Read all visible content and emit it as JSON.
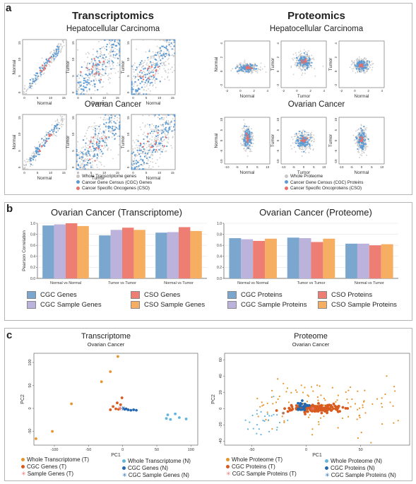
{
  "panel_a": {
    "label": "a",
    "left_title": "Transcriptomics",
    "right_title": "Proteomics",
    "rows": [
      "Hepatocellular Carcinoma",
      "Ovarian Cancer"
    ],
    "left_legend": [
      "Whole Transcriptome genes",
      "Cancer Gene Census (CGC) Genes",
      "Cancer Specific Oncogenes (CSO)"
    ],
    "right_legend": [
      "Whole Proteome",
      "Cancer Gene Census (CGC) Proteins",
      "Cancer Specific Oncoproteins (CSO)"
    ]
  },
  "panel_b": {
    "label": "b"
  },
  "panel_c": {
    "label": "c"
  },
  "colors": {
    "grey": "#c6c6c6",
    "blue": "#5b9bd5",
    "red": "#e8706a",
    "bar_blue": "#7ba7cf",
    "bar_lav": "#bbb3dc",
    "bar_red": "#ee7d73",
    "bar_orange": "#f6ae62",
    "orange": "#e8942c",
    "darkorange": "#d95a1e",
    "darkblue": "#2368b0",
    "lightblue": "#64b4dc"
  },
  "chart_data": [
    {
      "type": "scatter",
      "panel": "a-transcriptomics",
      "note_axes": [
        [
          "Normal",
          "Normal"
        ],
        [
          "Tumor",
          "Tumor"
        ],
        [
          "Normal",
          "Tumor"
        ]
      ],
      "xticks": [
        "0",
        "5",
        "10",
        "15"
      ],
      "yticks": [
        "0",
        "5",
        "10",
        "15"
      ],
      "xlim": [
        0,
        15
      ],
      "ylim": [
        0,
        15
      ]
    },
    {
      "type": "scatter",
      "panel": "a-proteomics",
      "hcc_xticks": [
        "-2",
        "0",
        "2",
        "4"
      ],
      "hcc_yticks": [
        "-2",
        "0",
        "2",
        "4"
      ],
      "ov_xticks": [
        "-10",
        "-5",
        "0",
        "5",
        "10"
      ],
      "ov_yticks": [
        "-10",
        "-5",
        "0",
        "5",
        "10"
      ]
    },
    {
      "type": "bar",
      "title": "Ovarian Cancer (Transcriptome)",
      "ylabel": "Pearson Correlation",
      "ylim": [
        0,
        1
      ],
      "yticks": [
        "0.0",
        "0.2",
        "0.4",
        "0.6",
        "0.8",
        "1.0"
      ],
      "categories": [
        "Normal vs Normal",
        "Tumor vs Tumor",
        "Normal vs Tumor"
      ],
      "series": [
        {
          "name": "CGC Genes",
          "values": [
            0.96,
            0.78,
            0.83
          ]
        },
        {
          "name": "CGC Sample Genes",
          "values": [
            0.98,
            0.88,
            0.84
          ]
        },
        {
          "name": "CSO Genes",
          "values": [
            1.0,
            0.92,
            0.93
          ]
        },
        {
          "name": "CSO Sample Genes",
          "values": [
            0.95,
            0.88,
            0.86
          ]
        }
      ]
    },
    {
      "type": "bar",
      "title": "Ovarian Cancer (Proteome)",
      "ylabel": "",
      "ylim": [
        0,
        1
      ],
      "yticks": [
        "0.0",
        "0.2",
        "0.4",
        "0.6",
        "0.8",
        "1.0"
      ],
      "categories": [
        "Normal vs Normal",
        "Tumor vs Tumor",
        "Normal vs Tumor"
      ],
      "series": [
        {
          "name": "CGC Proteins",
          "values": [
            0.73,
            0.74,
            0.63
          ]
        },
        {
          "name": "CGC Sample Proteins",
          "values": [
            0.71,
            0.73,
            0.63
          ]
        },
        {
          "name": "CSO Proteins",
          "values": [
            0.68,
            0.66,
            0.6
          ]
        },
        {
          "name": "CSO Sample Proteins",
          "values": [
            0.72,
            0.72,
            0.62
          ]
        }
      ]
    },
    {
      "type": "scatter",
      "title": "Transcriptome",
      "subtitle": "Ovarian Cancer",
      "xlabel": "PC1",
      "ylabel": "PC2",
      "xlim": [
        -130,
        110
      ],
      "ylim": [
        -80,
        120
      ],
      "xticks": [
        -100,
        -50,
        0,
        50,
        100
      ],
      "yticks": [
        -50,
        0,
        50,
        100
      ],
      "series": [
        {
          "name": "Whole Transcriptome (T)",
          "points": [
            [
              -127,
              -66
            ],
            [
              -103,
              -50
            ],
            [
              -75,
              10
            ],
            [
              -31,
              58
            ],
            [
              -18,
              80
            ],
            [
              -7,
              113
            ]
          ]
        },
        {
          "name": "CGC Genes (T)",
          "points": [
            [
              -18,
              -3
            ],
            [
              -14,
              4
            ],
            [
              -10,
              -1
            ],
            [
              -8,
              12
            ],
            [
              -3,
              8
            ],
            [
              -1,
              23
            ],
            [
              -6,
              -2
            ]
          ]
        },
        {
          "name": "Sample Genes (T)",
          "points": [
            [
              -4,
              0
            ]
          ]
        },
        {
          "name": "Whole Transcriptome (N)",
          "points": [
            [
              66,
              -14
            ],
            [
              70,
              -24
            ],
            [
              77,
              -12
            ],
            [
              83,
              -20
            ],
            [
              93,
              -23
            ],
            [
              64,
              -22
            ]
          ]
        },
        {
          "name": "CGC Genes (N)",
          "points": [
            [
              3,
              -2
            ],
            [
              8,
              -3
            ],
            [
              12,
              -4
            ],
            [
              16,
              -3
            ],
            [
              20,
              -4
            ],
            [
              5,
              -1
            ]
          ]
        },
        {
          "name": "CGC Sample Genes (N)",
          "points": [
            [
              1,
              0
            ]
          ]
        }
      ]
    },
    {
      "type": "scatter",
      "title": "Proteome",
      "subtitle": "Ovarian Cancer",
      "xlabel": "PC1",
      "ylabel": "PC2",
      "xlim": [
        -75,
        95
      ],
      "ylim": [
        -45,
        68
      ],
      "xticks": [
        -50,
        0,
        50
      ],
      "yticks": [
        -40,
        -20,
        0,
        20,
        40,
        60
      ],
      "series": [
        {
          "name": "Whole Proteome (T)"
        },
        {
          "name": "CGC Proteins (T)"
        },
        {
          "name": "CGC Sample Proteins (T)"
        },
        {
          "name": "Whole Proteome (N)"
        },
        {
          "name": "CGC Proteins (N)"
        },
        {
          "name": "CGC Sample Proteins (N)"
        }
      ]
    }
  ]
}
